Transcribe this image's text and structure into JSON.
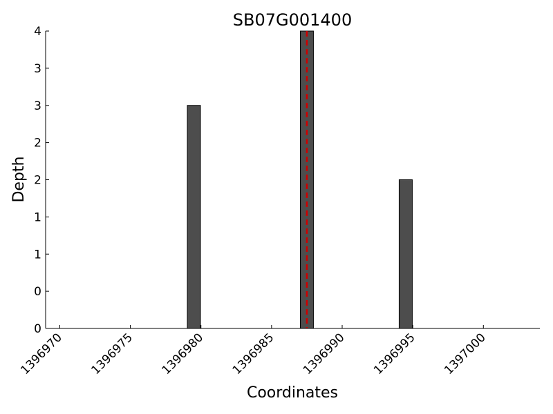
{
  "chart_data": {
    "type": "bar",
    "title": "SB07G001400",
    "x_label": "Coordinates",
    "y_label": "Depth",
    "x": [
      1396979.5,
      1396987.5,
      1396994.5
    ],
    "values": [
      3,
      4,
      2
    ],
    "color": "#4d4d4d",
    "xlim": [
      1396969,
      1397004
    ],
    "xticks": [
      1396970,
      1396975,
      1396980,
      1396985,
      1396990,
      1396995,
      1397000
    ],
    "ylim": [
      0,
      4
    ],
    "yticks": [
      0,
      {
        "value": 0.5,
        "label": "0"
      },
      1,
      {
        "value": 1.5,
        "label": "1"
      },
      2,
      {
        "value": 2.5,
        "label": "2"
      },
      3,
      {
        "value": 3.5,
        "label": "3"
      },
      4
    ],
    "vline": {
      "x": 1396987.5,
      "color": "#cc0000"
    }
  }
}
